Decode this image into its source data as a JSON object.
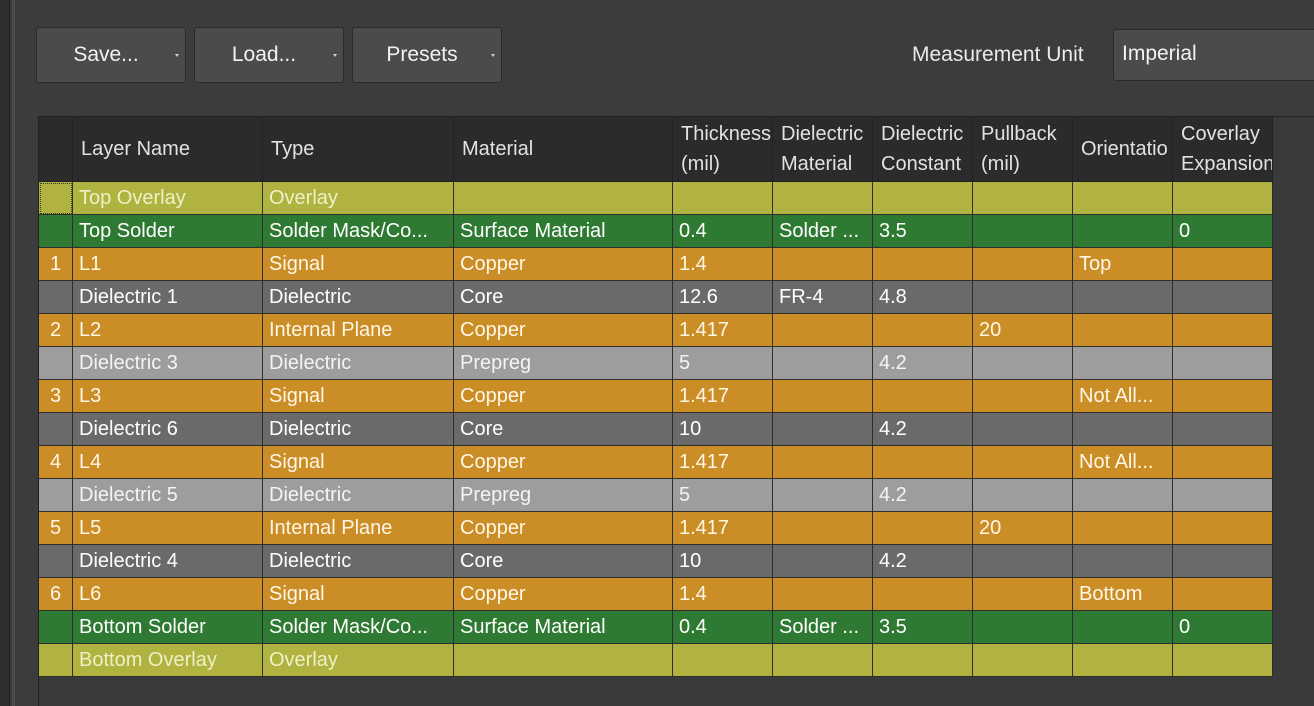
{
  "toolbar": {
    "save_label": "Save...",
    "load_label": "Load...",
    "presets_label": "Presets",
    "unit_label": "Measurement Unit",
    "unit_value": "Imperial"
  },
  "table": {
    "headers": [
      {
        "line1": "",
        "line2": ""
      },
      {
        "line1": "Layer Name",
        "line2": ""
      },
      {
        "line1": "Type",
        "line2": ""
      },
      {
        "line1": "Material",
        "line2": ""
      },
      {
        "line1": "Thickness",
        "line2": "(mil)"
      },
      {
        "line1": "Dielectric",
        "line2": "Material"
      },
      {
        "line1": "Dielectric",
        "line2": "Constant"
      },
      {
        "line1": "Pullback",
        "line2": "(mil)"
      },
      {
        "line1": "Orientatio",
        "line2": ""
      },
      {
        "line1": "Coverlay",
        "line2": "Expansion"
      }
    ],
    "rows": [
      {
        "kind": "overlay",
        "cells": [
          "",
          "Top Overlay",
          "Overlay",
          "",
          "",
          "",
          "",
          "",
          "",
          ""
        ]
      },
      {
        "kind": "solder",
        "cells": [
          "",
          "Top Solder",
          "Solder Mask/Co...",
          "Surface Material",
          "0.4",
          "Solder ...",
          "3.5",
          "",
          "",
          "0"
        ]
      },
      {
        "kind": "copper",
        "cells": [
          "1",
          "L1",
          "Signal",
          "Copper",
          "1.4",
          "",
          "",
          "",
          "Top",
          ""
        ]
      },
      {
        "kind": "core",
        "cells": [
          "",
          "Dielectric 1",
          "Dielectric",
          "Core",
          "12.6",
          "FR-4",
          "4.8",
          "",
          "",
          ""
        ]
      },
      {
        "kind": "copper",
        "cells": [
          "2",
          "L2",
          "Internal Plane",
          "Copper",
          "1.417",
          "",
          "",
          "20",
          "",
          ""
        ]
      },
      {
        "kind": "prepreg",
        "cells": [
          "",
          "Dielectric 3",
          "Dielectric",
          "Prepreg",
          "5",
          "",
          "4.2",
          "",
          "",
          ""
        ]
      },
      {
        "kind": "copper",
        "cells": [
          "3",
          "L3",
          "Signal",
          "Copper",
          "1.417",
          "",
          "",
          "",
          "Not All...",
          ""
        ]
      },
      {
        "kind": "core",
        "cells": [
          "",
          "Dielectric 6",
          "Dielectric",
          "Core",
          "10",
          "",
          "4.2",
          "",
          "",
          ""
        ]
      },
      {
        "kind": "copper",
        "cells": [
          "4",
          "L4",
          "Signal",
          "Copper",
          "1.417",
          "",
          "",
          "",
          "Not All...",
          ""
        ]
      },
      {
        "kind": "prepreg",
        "cells": [
          "",
          "Dielectric 5",
          "Dielectric",
          "Prepreg",
          "5",
          "",
          "4.2",
          "",
          "",
          ""
        ]
      },
      {
        "kind": "copper",
        "cells": [
          "5",
          "L5",
          "Internal Plane",
          "Copper",
          "1.417",
          "",
          "",
          "20",
          "",
          ""
        ]
      },
      {
        "kind": "core",
        "cells": [
          "",
          "Dielectric 4",
          "Dielectric",
          "Core",
          "10",
          "",
          "4.2",
          "",
          "",
          ""
        ]
      },
      {
        "kind": "copper",
        "cells": [
          "6",
          "L6",
          "Signal",
          "Copper",
          "1.4",
          "",
          "",
          "",
          "Bottom",
          ""
        ]
      },
      {
        "kind": "solder",
        "cells": [
          "",
          "Bottom Solder",
          "Solder Mask/Co...",
          "Surface Material",
          "0.4",
          "Solder ...",
          "3.5",
          "",
          "",
          "0"
        ]
      },
      {
        "kind": "overlay",
        "cells": [
          "",
          "Bottom Overlay",
          "Overlay",
          "",
          "",
          "",
          "",
          "",
          "",
          ""
        ]
      }
    ]
  },
  "colors": {
    "overlay": {
      "bg": "#b0b33f",
      "fg": "#f0f0c8"
    },
    "solder": {
      "bg": "#2f7a32",
      "fg": "#ffffff"
    },
    "copper": {
      "bg": "#cb8d26",
      "fg": "#fff7e6"
    },
    "core": {
      "bg": "#6a6a6a",
      "fg": "#ffffff"
    },
    "prepreg": {
      "bg": "#9d9d9d",
      "fg": "#f4f4f4"
    }
  }
}
